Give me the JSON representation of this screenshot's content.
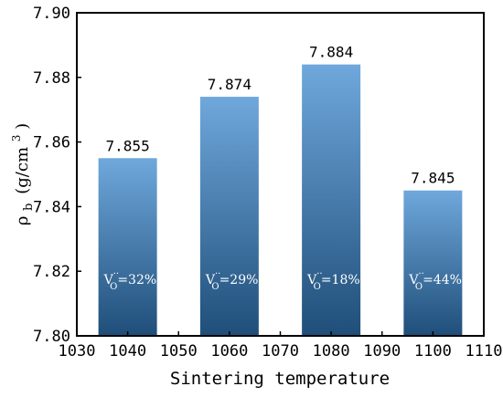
{
  "chart_data": {
    "type": "bar",
    "title": "",
    "xlabel": "Sintering temperature",
    "ylabel": {
      "symbol": "ρ",
      "subscript": "b",
      "unit_open": "(g/cm",
      "unit_sup": "3",
      "unit_close": ")"
    },
    "categories": [
      1040,
      1060,
      1080,
      1100
    ],
    "values": [
      7.855,
      7.874,
      7.884,
      7.845
    ],
    "data_labels": [
      "7.855",
      "7.874",
      "7.884",
      "7.845"
    ],
    "annotations": [
      {
        "prefix": "V",
        "sub": "O",
        "sup": "··",
        "value": "=32%"
      },
      {
        "prefix": "V",
        "sub": "O",
        "sup": "··",
        "value": "=29%"
      },
      {
        "prefix": "V",
        "sub": "O",
        "sup": "··",
        "value": "=18%"
      },
      {
        "prefix": "V",
        "sub": "O",
        "sup": "··",
        "value": "=44%"
      }
    ],
    "xlim": [
      1030,
      1110
    ],
    "ylim": [
      7.8,
      7.9
    ],
    "x_ticks": [
      1030,
      1040,
      1050,
      1060,
      1070,
      1080,
      1090,
      1100,
      1110
    ],
    "y_ticks": [
      "7.80",
      "7.82",
      "7.84",
      "7.86",
      "7.88",
      "7.90"
    ],
    "grid": false,
    "bar_colors": {
      "top": "#6fa8dc",
      "bottom": "#1f4e79"
    }
  }
}
